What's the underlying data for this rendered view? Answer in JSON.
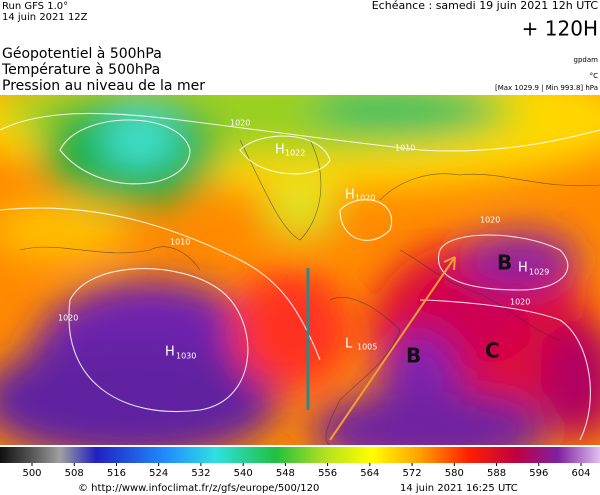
{
  "header": {
    "run": "Run GFS 1.0°",
    "run_date": "14 juin 2021 12Z",
    "valid": "Echéance : samedi 19 juin 2021 12h UTC",
    "lead": "+ 120H",
    "titles": [
      "Géopotentiel à 500hPa",
      "Température à 500hPa",
      "Pression au niveau de la mer"
    ],
    "source_tag": "gpdam",
    "temp_unit": "°C",
    "pressure_range": "[Max 1029.9 | Min 993.8] hPa"
  },
  "map": {
    "highs": [
      {
        "letter": "H",
        "value": "1022"
      },
      {
        "letter": "H",
        "value": "1020"
      },
      {
        "letter": "H",
        "value": "1030"
      },
      {
        "letter": "H",
        "value": "1029"
      }
    ],
    "lows": [
      {
        "letter": "L",
        "value": "1005"
      }
    ],
    "isobar_labels": [
      "1020",
      "1010",
      "1020",
      "1020",
      "1020",
      "1010"
    ],
    "annotations": [
      "B",
      "B",
      "C"
    ]
  },
  "colorbar": {
    "ticks": [
      500,
      508,
      516,
      524,
      532,
      540,
      548,
      556,
      564,
      572,
      580,
      588,
      596,
      604
    ]
  },
  "footer": {
    "url": "© http://www.infoclimat.fr/z/gfs/europe/500/120",
    "generated": "14 juin 2021 16:25 UTC"
  }
}
